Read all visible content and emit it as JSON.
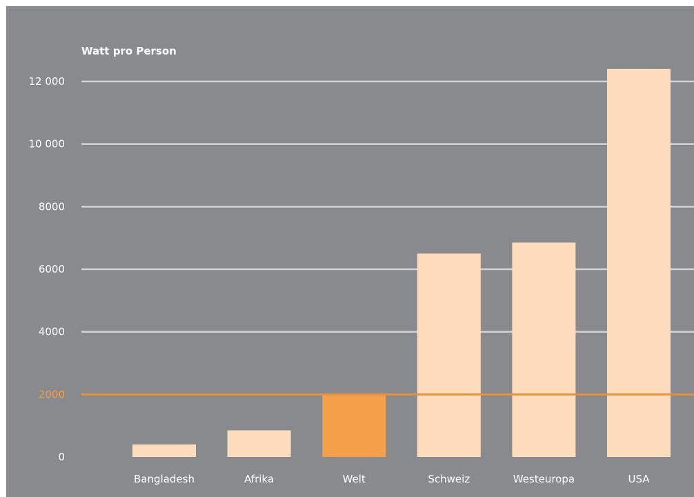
{
  "chart_data": {
    "type": "bar",
    "title": "Watt pro Person",
    "xlabel": "",
    "ylabel": "",
    "categories": [
      "Bangladesh",
      "Afrika",
      "Welt",
      "Schweiz",
      "Westeuropa",
      "USA"
    ],
    "values": [
      400,
      850,
      2000,
      6500,
      6850,
      12400
    ],
    "ylim": [
      0,
      12000
    ],
    "yticks": [
      0,
      2000,
      4000,
      6000,
      8000,
      10000,
      12000
    ],
    "ytick_labels": [
      "0",
      "2000",
      "4000",
      "6000",
      "8000",
      "10 000",
      "12 000"
    ],
    "highlight_category": "Welt",
    "reference_line": 2000,
    "grid": true,
    "colors": {
      "background": "#898a8d",
      "bar": "#fcdcbc",
      "highlight_bar": "#f4a04a",
      "gridline": "#d3d4d6",
      "reference_line": "#e8913c",
      "reference_label": "#f4a04a",
      "text": "#ffffff"
    }
  }
}
